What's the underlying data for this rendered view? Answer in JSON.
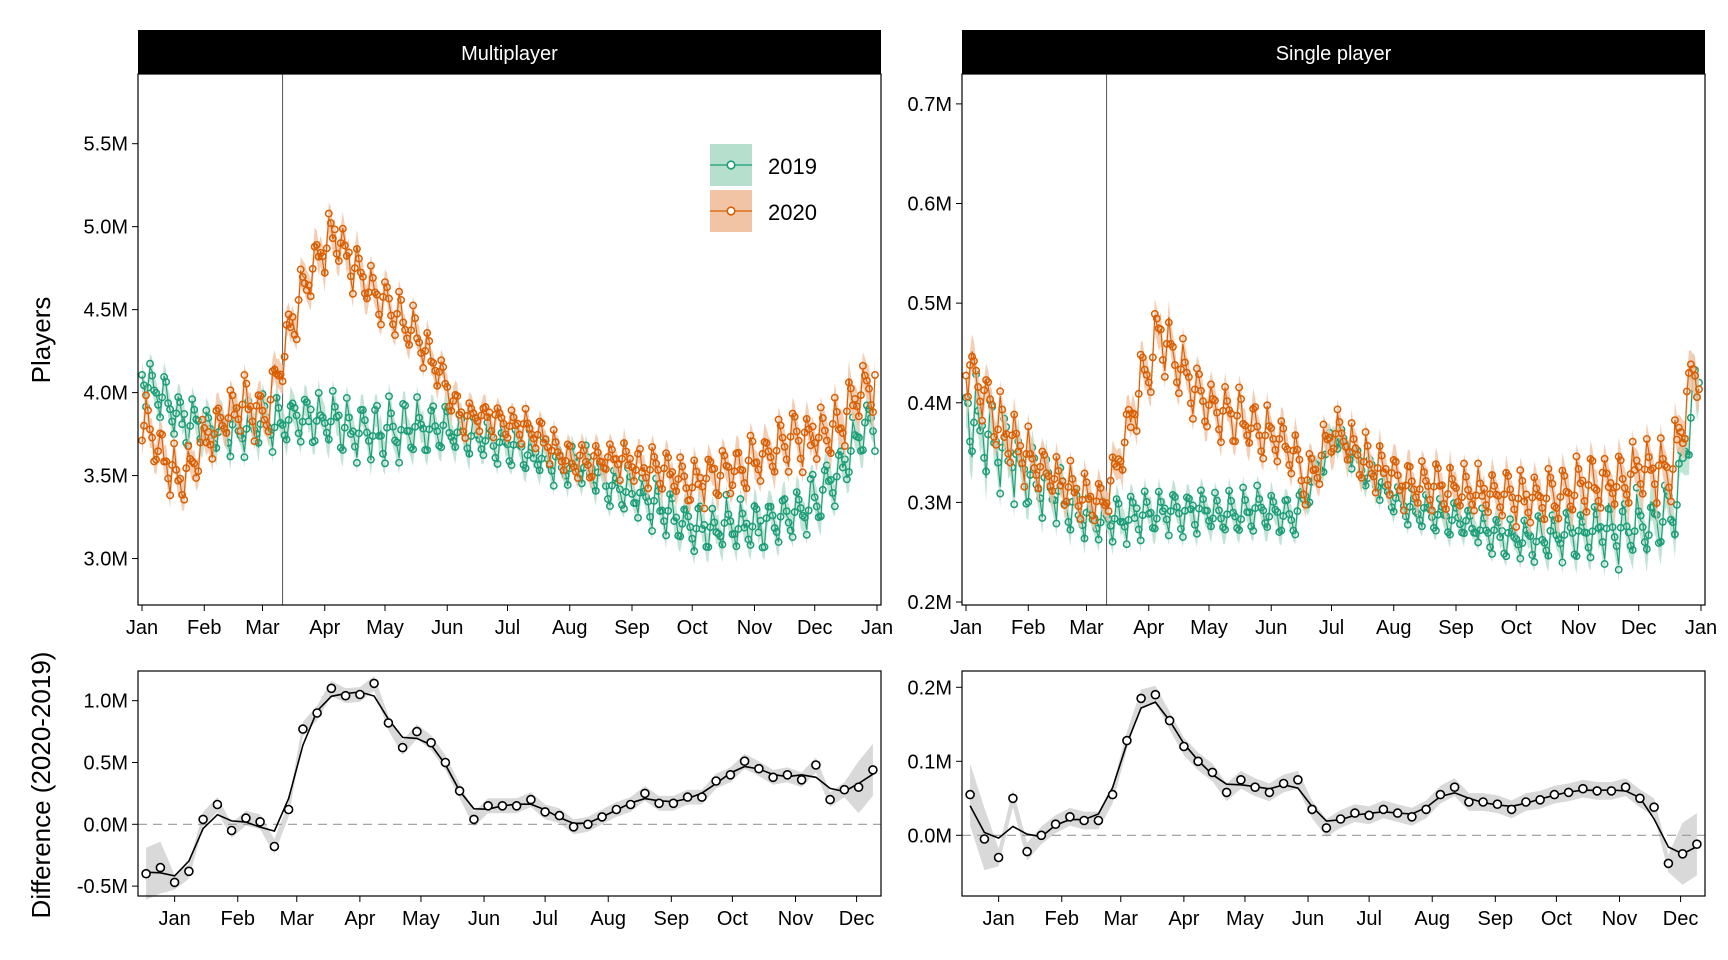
{
  "colors": {
    "y2019": "#1b9e77",
    "y2020": "#d95f02",
    "y2019_band": "#b7dfcd",
    "y2020_band": "#f2c4a6",
    "diff_band": "#d9d9d9"
  },
  "figure": {
    "y_label_top": "Players",
    "y_label_bottom": "Difference (2020-2019)"
  },
  "legend": {
    "labels": [
      "2019",
      "2020"
    ]
  },
  "month_ticks": [
    "Jan",
    "Feb",
    "Mar",
    "Apr",
    "May",
    "Jun",
    "Jul",
    "Aug",
    "Sep",
    "Oct",
    "Nov",
    "Dec",
    "Jan"
  ],
  "month_ticks_diff": [
    "Jan",
    "Feb",
    "Mar",
    "Apr",
    "May",
    "Jun",
    "Jul",
    "Aug",
    "Sep",
    "Oct",
    "Nov",
    "Dec"
  ],
  "chart_data": [
    {
      "type": "line",
      "panel": "Multiplayer",
      "x_type": "day of year",
      "ylim": [
        2.72,
        5.92
      ],
      "y_ticks": [
        "3.0M",
        "3.5M",
        "4.0M",
        "4.5M",
        "5.0M",
        "5.5M"
      ],
      "y_tick_values": [
        3.0,
        3.5,
        4.0,
        4.5,
        5.0,
        5.5
      ],
      "event_line_date": "Mar 11",
      "legend_position": "top-right",
      "series": [
        {
          "name": "2019",
          "anchors": [
            [
              1,
              4.1
            ],
            [
              20,
              3.85
            ],
            [
              40,
              3.75
            ],
            [
              62,
              3.82
            ],
            [
              80,
              3.85
            ],
            [
              97,
              3.82
            ],
            [
              115,
              3.75
            ],
            [
              130,
              3.78
            ],
            [
              150,
              3.78
            ],
            [
              165,
              3.75
            ],
            [
              180,
              3.7
            ],
            [
              200,
              3.6
            ],
            [
              220,
              3.55
            ],
            [
              240,
              3.42
            ],
            [
              260,
              3.3
            ],
            [
              275,
              3.18
            ],
            [
              290,
              3.2
            ],
            [
              310,
              3.2
            ],
            [
              330,
              3.3
            ],
            [
              345,
              3.45
            ],
            [
              358,
              3.75
            ],
            [
              366,
              3.8
            ]
          ],
          "weekly_amplitude": [
            [
              1,
              0.18
            ],
            [
              60,
              0.2
            ],
            [
              130,
              0.23
            ],
            [
              180,
              0.15
            ],
            [
              240,
              0.17
            ],
            [
              300,
              0.2
            ],
            [
              366,
              0.22
            ]
          ]
        },
        {
          "name": "2020",
          "anchors": [
            [
              1,
              3.85
            ],
            [
              10,
              3.65
            ],
            [
              20,
              3.45
            ],
            [
              35,
              3.75
            ],
            [
              50,
              3.95
            ],
            [
              62,
              3.85
            ],
            [
              72,
              4.25
            ],
            [
              80,
              4.6
            ],
            [
              88,
              4.8
            ],
            [
              97,
              4.95
            ],
            [
              110,
              4.7
            ],
            [
              125,
              4.5
            ],
            [
              140,
              4.3
            ],
            [
              150,
              4.1
            ],
            [
              160,
              3.85
            ],
            [
              175,
              3.85
            ],
            [
              195,
              3.78
            ],
            [
              215,
              3.58
            ],
            [
              240,
              3.6
            ],
            [
              260,
              3.52
            ],
            [
              275,
              3.45
            ],
            [
              290,
              3.52
            ],
            [
              305,
              3.58
            ],
            [
              325,
              3.72
            ],
            [
              345,
              3.75
            ],
            [
              358,
              4.0
            ],
            [
              366,
              4.05
            ]
          ],
          "weekly_amplitude": [
            [
              1,
              0.2
            ],
            [
              70,
              0.2
            ],
            [
              100,
              0.22
            ],
            [
              180,
              0.12
            ],
            [
              240,
              0.15
            ],
            [
              300,
              0.2
            ],
            [
              366,
              0.25
            ]
          ]
        }
      ]
    },
    {
      "type": "line",
      "panel": "Single player",
      "x_type": "day of year",
      "ylim": [
        0.197,
        0.73
      ],
      "y_ticks": [
        "0.2M",
        "0.3M",
        "0.4M",
        "0.5M",
        "0.6M",
        "0.7M"
      ],
      "y_tick_values": [
        0.2,
        0.3,
        0.4,
        0.5,
        0.6,
        0.7
      ],
      "event_line_date": "Mar 11",
      "series": [
        {
          "name": "2019",
          "anchors": [
            [
              1,
              0.39
            ],
            [
              15,
              0.36
            ],
            [
              30,
              0.33
            ],
            [
              45,
              0.31
            ],
            [
              60,
              0.285
            ],
            [
              75,
              0.28
            ],
            [
              90,
              0.29
            ],
            [
              105,
              0.29
            ],
            [
              120,
              0.29
            ],
            [
              135,
              0.29
            ],
            [
              150,
              0.29
            ],
            [
              165,
              0.285
            ],
            [
              185,
              0.37
            ],
            [
              200,
              0.33
            ],
            [
              215,
              0.3
            ],
            [
              230,
              0.29
            ],
            [
              250,
              0.28
            ],
            [
              270,
              0.265
            ],
            [
              290,
              0.265
            ],
            [
              310,
              0.27
            ],
            [
              330,
              0.27
            ],
            [
              345,
              0.28
            ],
            [
              355,
              0.3
            ],
            [
              362,
              0.39
            ],
            [
              366,
              0.41
            ]
          ],
          "weekly_amplitude": [
            [
              1,
              0.06
            ],
            [
              60,
              0.03
            ],
            [
              150,
              0.03
            ],
            [
              185,
              0.02
            ],
            [
              270,
              0.025
            ],
            [
              366,
              0.05
            ]
          ]
        },
        {
          "name": "2020",
          "anchors": [
            [
              1,
              0.44
            ],
            [
              20,
              0.37
            ],
            [
              40,
              0.33
            ],
            [
              60,
              0.305
            ],
            [
              70,
              0.3
            ],
            [
              78,
              0.35
            ],
            [
              90,
              0.43
            ],
            [
              98,
              0.47
            ],
            [
              105,
              0.44
            ],
            [
              120,
              0.4
            ],
            [
              140,
              0.38
            ],
            [
              160,
              0.36
            ],
            [
              172,
              0.32
            ],
            [
              185,
              0.37
            ],
            [
              200,
              0.34
            ],
            [
              220,
              0.32
            ],
            [
              240,
              0.315
            ],
            [
              260,
              0.31
            ],
            [
              280,
              0.305
            ],
            [
              300,
              0.31
            ],
            [
              320,
              0.32
            ],
            [
              340,
              0.33
            ],
            [
              352,
              0.33
            ],
            [
              362,
              0.42
            ],
            [
              366,
              0.44
            ]
          ],
          "weekly_amplitude": [
            [
              1,
              0.04
            ],
            [
              60,
              0.03
            ],
            [
              95,
              0.04
            ],
            [
              150,
              0.035
            ],
            [
              250,
              0.03
            ],
            [
              366,
              0.045
            ]
          ]
        }
      ]
    },
    {
      "type": "line",
      "panel": "Multiplayer difference",
      "x_type": "week start (day of year)",
      "ylim": [
        -0.58,
        1.24
      ],
      "y_ticks": [
        "-0.5M",
        "0.0M",
        "0.5M",
        "1.0M"
      ],
      "y_tick_values": [
        -0.5,
        0.0,
        0.5,
        1.0
      ],
      "reference_line": 0,
      "series": [
        {
          "name": "2020-2019",
          "x": [
            1,
            8,
            15,
            22,
            29,
            36,
            43,
            50,
            57,
            64,
            71,
            78,
            85,
            92,
            99,
            106,
            113,
            120,
            127,
            134,
            141,
            148,
            155,
            162,
            169,
            176,
            183,
            190,
            197,
            204,
            211,
            218,
            225,
            232,
            239,
            246,
            253,
            260,
            267,
            274,
            281,
            288,
            295,
            302,
            309,
            316,
            323,
            330,
            337,
            344,
            351,
            358
          ],
          "values": [
            -0.4,
            -0.35,
            -0.47,
            -0.38,
            0.04,
            0.16,
            -0.05,
            0.05,
            0.02,
            -0.18,
            0.12,
            0.77,
            0.9,
            1.1,
            1.04,
            1.05,
            1.14,
            0.82,
            0.62,
            0.75,
            0.66,
            0.5,
            0.27,
            0.04,
            0.15,
            0.15,
            0.15,
            0.2,
            0.1,
            0.07,
            -0.02,
            0.0,
            0.06,
            0.12,
            0.16,
            0.25,
            0.17,
            0.17,
            0.22,
            0.22,
            0.35,
            0.4,
            0.51,
            0.45,
            0.38,
            0.4,
            0.36,
            0.48,
            0.2,
            0.28,
            0.3,
            0.44
          ],
          "band_halfwidth": 0.06
        }
      ]
    },
    {
      "type": "line",
      "panel": "Single player difference",
      "x_type": "week start (day of year)",
      "ylim": [
        -0.082,
        0.222
      ],
      "y_ticks": [
        "0.0M",
        "0.1M",
        "0.2M"
      ],
      "y_tick_values": [
        0.0,
        0.1,
        0.2
      ],
      "reference_line": 0,
      "series": [
        {
          "name": "2020-2019",
          "x": [
            1,
            8,
            15,
            22,
            29,
            36,
            43,
            50,
            57,
            64,
            71,
            78,
            85,
            92,
            99,
            106,
            113,
            120,
            127,
            134,
            141,
            148,
            155,
            162,
            169,
            176,
            183,
            190,
            197,
            204,
            211,
            218,
            225,
            232,
            239,
            246,
            253,
            260,
            267,
            274,
            281,
            288,
            295,
            302,
            309,
            316,
            323,
            330,
            337,
            344,
            351,
            358
          ],
          "values": [
            0.055,
            -0.005,
            -0.03,
            0.05,
            -0.022,
            0.0,
            0.015,
            0.025,
            0.02,
            0.02,
            0.055,
            0.128,
            0.185,
            0.19,
            0.155,
            0.12,
            0.1,
            0.085,
            0.058,
            0.075,
            0.065,
            0.058,
            0.07,
            0.075,
            0.035,
            0.01,
            0.022,
            0.03,
            0.027,
            0.035,
            0.03,
            0.025,
            0.035,
            0.055,
            0.065,
            0.045,
            0.045,
            0.042,
            0.035,
            0.045,
            0.048,
            0.055,
            0.058,
            0.063,
            0.06,
            0.06,
            0.065,
            0.05,
            0.038,
            -0.038,
            -0.025,
            -0.012
          ],
          "band_halfwidth": 0.012
        }
      ]
    }
  ]
}
